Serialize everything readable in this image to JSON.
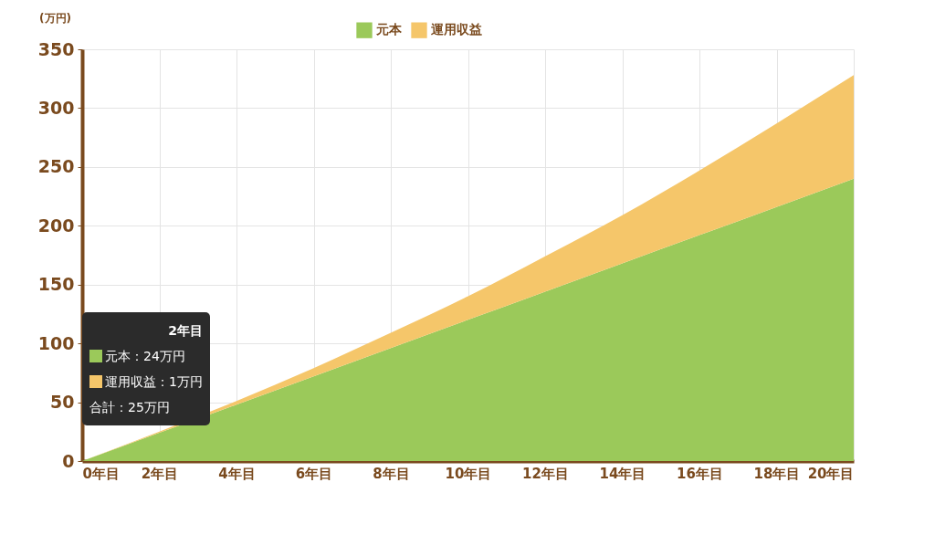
{
  "chart_data": {
    "type": "area",
    "stacked": true,
    "ylabel": "(万円)",
    "x": [
      0,
      2,
      4,
      6,
      8,
      10,
      12,
      14,
      16,
      18,
      20
    ],
    "series": [
      {
        "name": "元本",
        "color": "#9bc95a",
        "values": [
          0,
          24,
          48,
          72,
          96,
          120,
          144,
          168,
          192,
          216,
          240
        ]
      },
      {
        "name": "運用収益",
        "color": "#f5c66a",
        "values": [
          0,
          1,
          3,
          7,
          13,
          20,
          30,
          41,
          55,
          71,
          88
        ]
      }
    ],
    "xlim": [
      0,
      20
    ],
    "xticks": [
      {
        "value": 0,
        "label": "0年目"
      },
      {
        "value": 2,
        "label": "2年目"
      },
      {
        "value": 4,
        "label": "4年目"
      },
      {
        "value": 6,
        "label": "6年目"
      },
      {
        "value": 8,
        "label": "8年目"
      },
      {
        "value": 10,
        "label": "10年目"
      },
      {
        "value": 12,
        "label": "12年目"
      },
      {
        "value": 14,
        "label": "14年目"
      },
      {
        "value": 16,
        "label": "16年目"
      },
      {
        "value": 18,
        "label": "18年目"
      },
      {
        "value": 20,
        "label": "20年目"
      }
    ],
    "ylim": [
      0,
      350
    ],
    "yticks": [
      0,
      50,
      100,
      150,
      200,
      250,
      300,
      350
    ],
    "grid": true,
    "legend": "top",
    "annotations": [
      "2年目",
      "元本：24万円",
      "運用収益：1万円",
      "合計：25万円"
    ]
  }
}
